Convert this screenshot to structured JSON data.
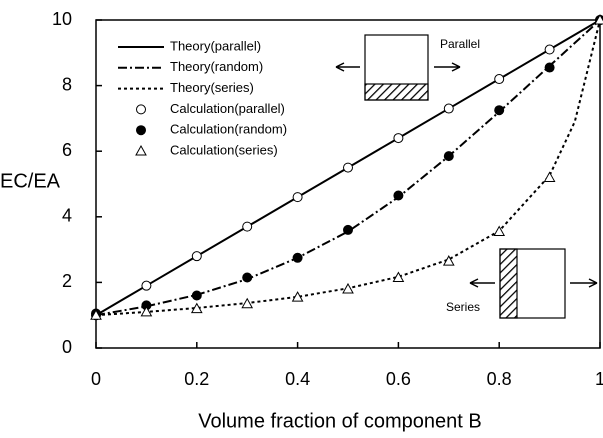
{
  "chart_data": {
    "type": "line",
    "xlabel": "Volume fraction of component B",
    "ylabel": "EC/EA",
    "xlim": [
      0,
      1
    ],
    "ylim": [
      0,
      10
    ],
    "xticks": [
      0,
      0.2,
      0.4,
      0.6,
      0.8,
      1
    ],
    "yticks": [
      0,
      2,
      4,
      6,
      8,
      10
    ],
    "insets": {
      "parallel": "Parallel",
      "series": "Series"
    },
    "series": [
      {
        "name": "Theory(parallel)",
        "color": "#000000",
        "style": "solid",
        "x": [
          0,
          0.1,
          0.2,
          0.3,
          0.4,
          0.5,
          0.6,
          0.7,
          0.8,
          0.9,
          1
        ],
        "values": [
          1,
          1.9,
          2.8,
          3.7,
          4.6,
          5.5,
          6.4,
          7.3,
          8.2,
          9.1,
          10
        ]
      },
      {
        "name": "Theory(random)",
        "color": "#000000",
        "style": "dashdot",
        "x": [
          0,
          0.1,
          0.2,
          0.3,
          0.4,
          0.5,
          0.6,
          0.7,
          0.8,
          0.9,
          1
        ],
        "values": [
          1,
          1.27,
          1.62,
          2.1,
          2.75,
          3.55,
          4.6,
          5.85,
          7.2,
          8.6,
          10
        ]
      },
      {
        "name": "Theory(series)",
        "color": "#000000",
        "style": "dotted",
        "x": [
          0,
          0.1,
          0.2,
          0.3,
          0.4,
          0.5,
          0.6,
          0.7,
          0.8,
          0.9,
          0.95,
          1
        ],
        "values": [
          1,
          1.1,
          1.22,
          1.37,
          1.56,
          1.82,
          2.17,
          2.7,
          3.57,
          5.26,
          6.9,
          10
        ]
      },
      {
        "name": "Calculation(parallel)",
        "color": "#000000",
        "marker": "open-circle",
        "x": [
          0,
          0.1,
          0.2,
          0.3,
          0.4,
          0.5,
          0.6,
          0.7,
          0.8,
          0.9,
          1
        ],
        "values": [
          1,
          1.9,
          2.8,
          3.7,
          4.6,
          5.5,
          6.4,
          7.3,
          8.2,
          9.1,
          10
        ]
      },
      {
        "name": "Calculation(random)",
        "color": "#000000",
        "marker": "filled-circle",
        "x": [
          0,
          0.1,
          0.2,
          0.3,
          0.4,
          0.5,
          0.6,
          0.7,
          0.8,
          0.9,
          1
        ],
        "values": [
          1.05,
          1.3,
          1.6,
          2.15,
          2.75,
          3.6,
          4.65,
          5.85,
          7.25,
          8.55,
          10
        ]
      },
      {
        "name": "Calculation(series)",
        "color": "#000000",
        "marker": "open-triangle",
        "x": [
          0,
          0.1,
          0.2,
          0.3,
          0.4,
          0.5,
          0.6,
          0.7,
          0.8,
          0.9,
          1
        ],
        "values": [
          1,
          1.1,
          1.2,
          1.35,
          1.55,
          1.8,
          2.15,
          2.65,
          3.55,
          5.2,
          10
        ]
      }
    ]
  }
}
